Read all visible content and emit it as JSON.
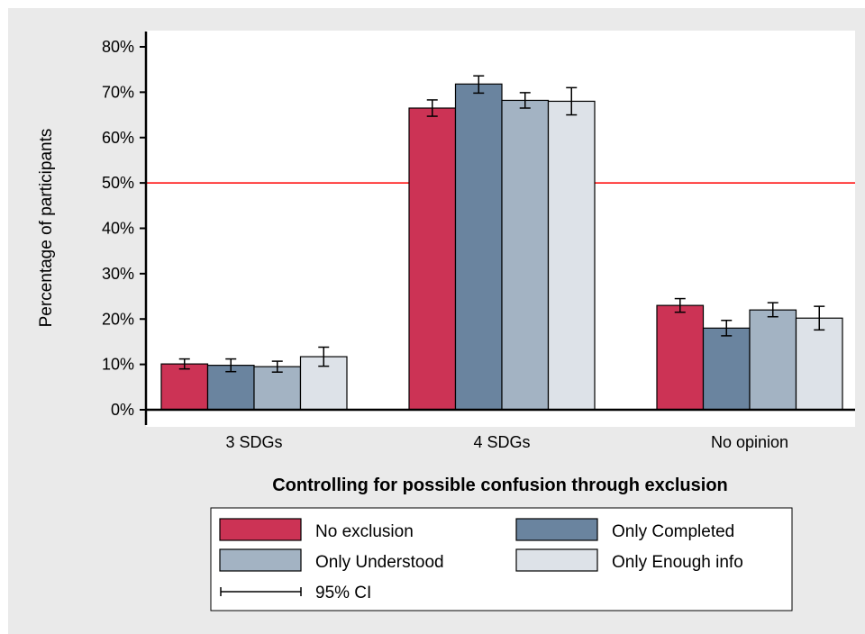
{
  "chart_data": {
    "type": "bar",
    "title": "",
    "xlabel": "Controlling for possible confusion through exclusion",
    "ylabel": "Percentage of participants",
    "ylim": [
      0,
      80
    ],
    "yticks": [
      "0%",
      "10%",
      "20%",
      "30%",
      "40%",
      "50%",
      "60%",
      "70%",
      "80%"
    ],
    "categories": [
      "3 SDGs",
      "4 SDGs",
      "No opinion"
    ],
    "reference_line": {
      "value": 50,
      "color": "#ff0000"
    },
    "grid": false,
    "legend_position": "bottom",
    "ci_label": "95% CI",
    "series": [
      {
        "name": "No exclusion",
        "color": "#cc3355",
        "values": [
          10.1,
          66.5,
          23.0
        ],
        "ci_low": [
          9.0,
          64.7,
          21.5
        ],
        "ci_high": [
          11.2,
          68.3,
          24.5
        ]
      },
      {
        "name": "Only Completed",
        "color": "#6a849f",
        "values": [
          9.8,
          71.8,
          18.0
        ],
        "ci_low": [
          8.4,
          69.8,
          16.3
        ],
        "ci_high": [
          11.2,
          73.6,
          19.7
        ]
      },
      {
        "name": "Only Understood",
        "color": "#a3b3c3",
        "values": [
          9.5,
          68.2,
          22.0
        ],
        "ci_low": [
          8.3,
          66.5,
          20.5
        ],
        "ci_high": [
          10.7,
          69.9,
          23.6
        ]
      },
      {
        "name": "Only Enough info",
        "color": "#dde2e8",
        "values": [
          11.7,
          68.0,
          20.2
        ],
        "ci_low": [
          9.6,
          65.0,
          17.6
        ],
        "ci_high": [
          13.8,
          71.0,
          22.8
        ]
      }
    ]
  }
}
